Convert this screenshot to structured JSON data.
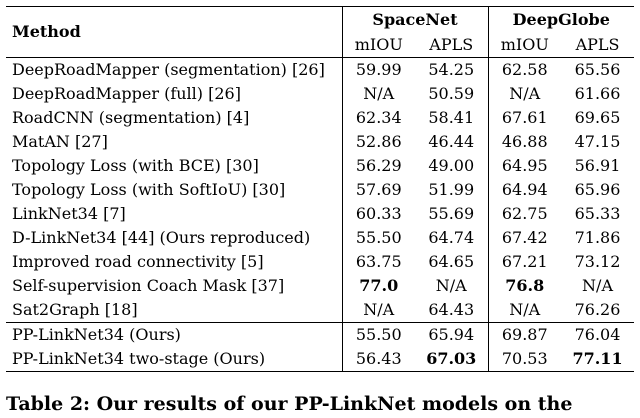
{
  "table": {
    "method_header": "Method",
    "group1": "SpaceNet",
    "group2": "DeepGlobe",
    "subheaders": [
      "mIOU",
      "APLS",
      "mIOU",
      "APLS"
    ],
    "rows": [
      {
        "method": "DeepRoadMapper (segmentation) [26]",
        "vals": [
          "59.99",
          "54.25",
          "62.58",
          "65.56"
        ],
        "bold": [
          false,
          false,
          false,
          false
        ]
      },
      {
        "method": "DeepRoadMapper (full) [26]",
        "vals": [
          "N/A",
          "50.59",
          "N/A",
          "61.66"
        ],
        "bold": [
          false,
          false,
          false,
          false
        ]
      },
      {
        "method": "RoadCNN (segmentation) [4]",
        "vals": [
          "62.34",
          "58.41",
          "67.61",
          "69.65"
        ],
        "bold": [
          false,
          false,
          false,
          false
        ]
      },
      {
        "method": "MatAN [27]",
        "vals": [
          "52.86",
          "46.44",
          "46.88",
          "47.15"
        ],
        "bold": [
          false,
          false,
          false,
          false
        ]
      },
      {
        "method": "Topology Loss (with BCE) [30]",
        "vals": [
          "56.29",
          "49.00",
          "64.95",
          "56.91"
        ],
        "bold": [
          false,
          false,
          false,
          false
        ]
      },
      {
        "method": "Topology Loss (with SoftIoU) [30]",
        "vals": [
          "57.69",
          "51.99",
          "64.94",
          "65.96"
        ],
        "bold": [
          false,
          false,
          false,
          false
        ]
      },
      {
        "method": "LinkNet34 [7]",
        "vals": [
          "60.33",
          "55.69",
          "62.75",
          "65.33"
        ],
        "bold": [
          false,
          false,
          false,
          false
        ]
      },
      {
        "method": "D-LinkNet34 [44] (Ours reproduced)",
        "vals": [
          "55.50",
          "64.74",
          "67.42",
          "71.86"
        ],
        "bold": [
          false,
          false,
          false,
          false
        ]
      },
      {
        "method": "Improved road connectivity [5]",
        "vals": [
          "63.75",
          "64.65",
          "67.21",
          "73.12"
        ],
        "bold": [
          false,
          false,
          false,
          false
        ]
      },
      {
        "method": "Self-supervision Coach Mask [37]",
        "vals": [
          "77.0",
          "N/A",
          "76.8",
          "N/A"
        ],
        "bold": [
          true,
          false,
          true,
          false
        ]
      },
      {
        "method": "Sat2Graph [18]",
        "vals": [
          "N/A",
          "64.43",
          "N/A",
          "76.26"
        ],
        "bold": [
          false,
          false,
          false,
          false
        ]
      }
    ],
    "ours_rows": [
      {
        "method": "PP-LinkNet34 (Ours)",
        "vals": [
          "55.50",
          "65.94",
          "69.87",
          "76.04"
        ],
        "bold": [
          false,
          false,
          false,
          false
        ]
      },
      {
        "method": "PP-LinkNet34 two-stage (Ours)",
        "vals": [
          "56.43",
          "67.03",
          "70.53",
          "77.11"
        ],
        "bold": [
          false,
          true,
          false,
          true
        ]
      }
    ]
  },
  "caption": "Table 2: Our results of our PP-LinkNet models on the"
}
